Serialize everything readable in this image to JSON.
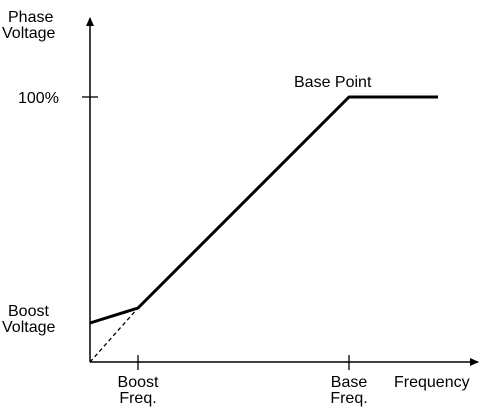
{
  "labels": {
    "y_axis_line1": "Phase",
    "y_axis_line2": "Voltage",
    "x_axis": "Frequency",
    "y_tick_100": "100%",
    "boost_voltage_line1": "Boost",
    "boost_voltage_line2": "Voltage",
    "boost_freq_line1": "Boost",
    "boost_freq_line2": "Freq.",
    "base_freq_line1": "Base",
    "base_freq_line2": "Freq.",
    "base_point": "Base Point"
  },
  "colors": {
    "line": "#000000",
    "background": "#ffffff"
  }
}
